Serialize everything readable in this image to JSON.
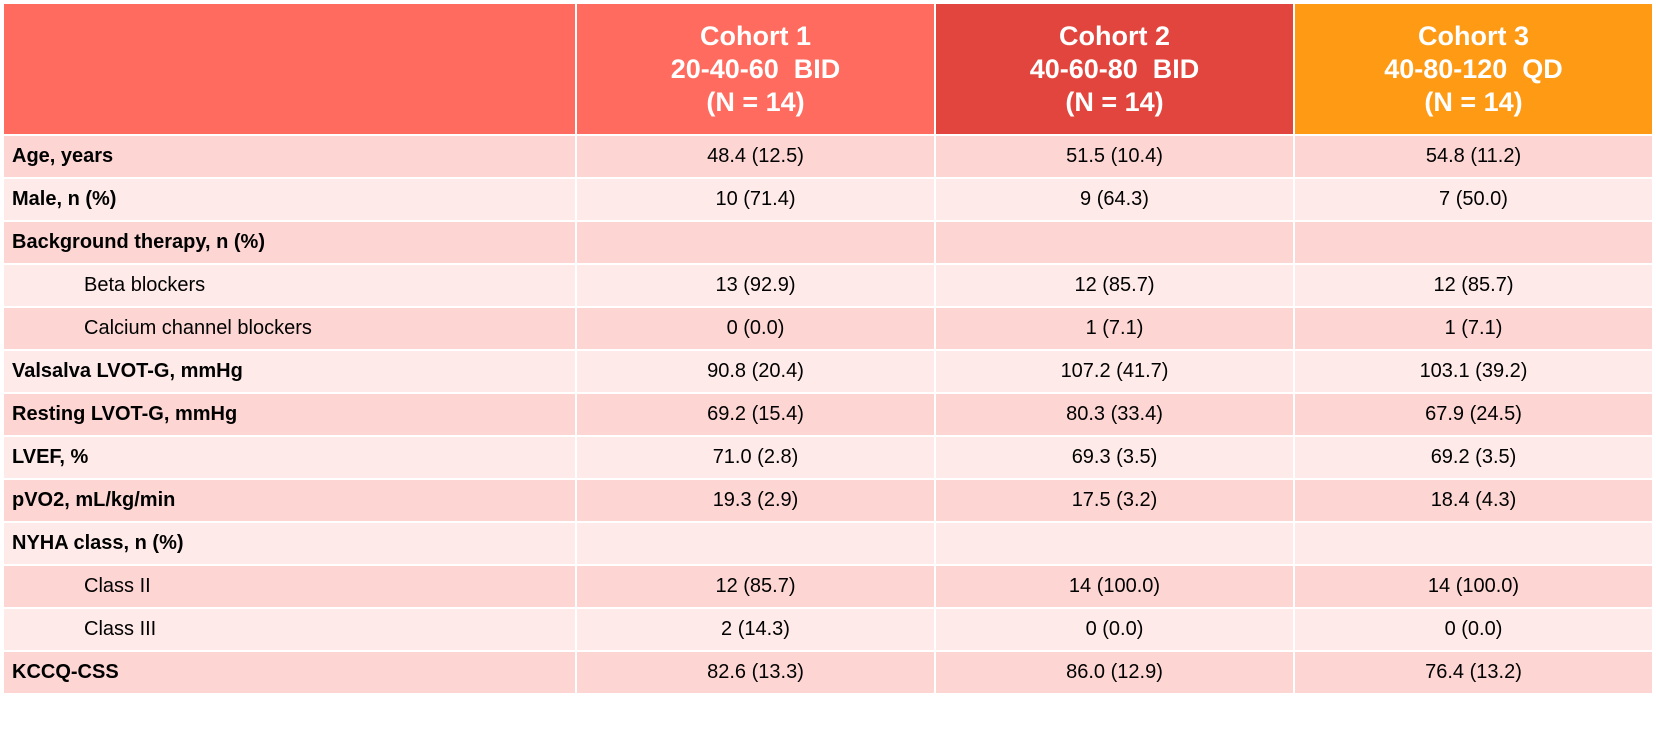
{
  "header": {
    "cohorts": [
      {
        "name": "Cohort 1",
        "dose": "20-40-60  BID",
        "n": "(N = 14)",
        "color": "#ff6b5e"
      },
      {
        "name": "Cohort 2",
        "dose": "40-60-80  BID",
        "n": "(N = 14)",
        "color": "#e2453d"
      },
      {
        "name": "Cohort 3",
        "dose": "40-80-120  QD",
        "n": "(N = 14)",
        "color": "#ff9a14"
      }
    ]
  },
  "rows": [
    {
      "label": "Age, years",
      "values": [
        "48.4 (12.5)",
        "51.5 (10.4)",
        "54.8 (11.2)"
      ]
    },
    {
      "label": "Male, n (%)",
      "values": [
        "10 (71.4)",
        "9 (64.3)",
        "7 (50.0)"
      ]
    },
    {
      "label": "Background therapy, n (%)",
      "values": [
        "",
        "",
        ""
      ]
    },
    {
      "label": "Beta blockers",
      "values": [
        "13 (92.9)",
        "12 (85.7)",
        "12 (85.7)"
      ]
    },
    {
      "label": "Calcium channel blockers",
      "values": [
        "0 (0.0)",
        "1 (7.1)",
        "1 (7.1)"
      ]
    },
    {
      "label": "Valsalva LVOT-G, mmHg",
      "values": [
        "90.8 (20.4)",
        "107.2 (41.7)",
        "103.1 (39.2)"
      ]
    },
    {
      "label": "Resting LVOT-G, mmHg",
      "values": [
        "69.2 (15.4)",
        "80.3 (33.4)",
        "67.9 (24.5)"
      ]
    },
    {
      "label": "LVEF, %",
      "values": [
        "71.0 (2.8)",
        "69.3 (3.5)",
        "69.2 (3.5)"
      ]
    },
    {
      "label": "pVO2, mL/kg/min",
      "values": [
        "19.3 (2.9)",
        "17.5 (3.2)",
        "18.4 (4.3)"
      ]
    },
    {
      "label": "NYHA class, n (%)",
      "values": [
        "",
        "",
        ""
      ]
    },
    {
      "label": "Class II",
      "values": [
        "12 (85.7)",
        "14 (100.0)",
        "14 (100.0)"
      ]
    },
    {
      "label": "Class III",
      "values": [
        "2 (14.3)",
        "0 (0.0)",
        "0 (0.0)"
      ]
    },
    {
      "label": "KCCQ-CSS",
      "values": [
        "82.6 (13.3)",
        "86.0 (12.9)",
        "76.4 (13.2)"
      ]
    }
  ]
}
